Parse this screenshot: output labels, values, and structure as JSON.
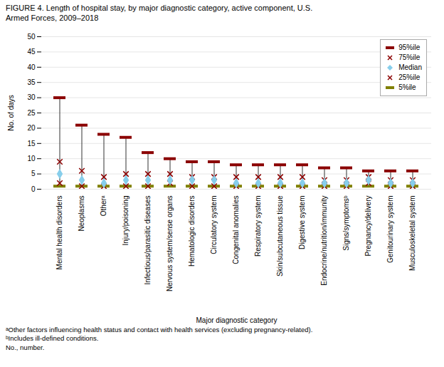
{
  "chart_data": {
    "type": "percentile",
    "title": "FIGURE 4. Length of hospital stay, by major diagnostic category, active component, U.S.\nArmed Forces, 2009–2018",
    "xlabel": "Major diagnostic category",
    "ylabel": "No. of days",
    "categories": [
      "Mental health disorders",
      "Neoplasms",
      "Otherᵃ",
      "Injury/poisoning",
      "Infectious/parasitic diseases",
      "Nervous system/sense organs",
      "Hematologic disorders",
      "Circulatory system",
      "Congenital anomalies",
      "Respiratory system",
      "Skin/subcutaneous tissue",
      "Digestive system",
      "Endocrine/nutrition/immunity",
      "Signs/symptomsᵇ",
      "Pregnancy/delivery",
      "Genitourinary system",
      "Musculoskeletal system"
    ],
    "series": [
      {
        "name": "95%ile",
        "color": "#8B0000",
        "marker": "bar",
        "values": [
          30,
          21,
          18,
          17,
          12,
          10,
          9,
          9,
          8,
          8,
          8,
          8,
          7,
          7,
          6,
          6,
          6
        ]
      },
      {
        "name": "75%ile",
        "color": "#8B0000",
        "marker": "x",
        "values": [
          9,
          6,
          4,
          5,
          5,
          5,
          4,
          4,
          4,
          4,
          4,
          4,
          3,
          3,
          4,
          3,
          3
        ]
      },
      {
        "name": "Median",
        "color": "#87CEEB",
        "marker": "diamond",
        "values": [
          5,
          3,
          2,
          3,
          3,
          3,
          3,
          3,
          2,
          2,
          2,
          2,
          2,
          2,
          3,
          2,
          2
        ]
      },
      {
        "name": "25%ile",
        "color": "#8B0000",
        "marker": "x",
        "values": [
          2,
          1,
          1,
          1,
          1,
          2,
          1,
          1,
          1,
          1,
          1,
          1,
          1,
          1,
          2,
          1,
          1
        ]
      },
      {
        "name": "5%ile",
        "color": "#808000",
        "marker": "bar",
        "values": [
          1,
          1,
          1,
          1,
          1,
          1,
          1,
          1,
          1,
          1,
          1,
          1,
          1,
          1,
          1,
          1,
          1
        ]
      }
    ],
    "color": "#333333",
    "ylim": [
      0,
      50
    ],
    "yticks": [
      0,
      5,
      10,
      15,
      20,
      25,
      30,
      35,
      40,
      45,
      50
    ],
    "grid": true,
    "legend": "upper right",
    "annotations": [
      "ᵃOther factors influencing health status and contact with health services (excluding pregnancy-related).",
      "ᵇIncludes ill-defined conditions.",
      "No., number."
    ]
  }
}
